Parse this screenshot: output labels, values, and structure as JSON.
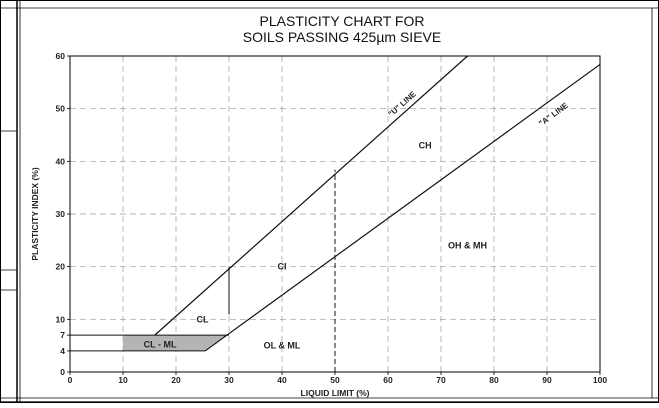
{
  "chart_data": {
    "type": "line",
    "title_lines": [
      "PLASTICITY CHART FOR",
      "SOILS PASSING 425µm SIEVE"
    ],
    "xlabel": "LIQUID LIMIT (%)",
    "ylabel": "PLASTICITY INDEX (%)",
    "xlim": [
      0,
      100
    ],
    "ylim": [
      0,
      60
    ],
    "x_ticks": [
      0,
      10,
      20,
      30,
      40,
      50,
      60,
      70,
      80,
      90,
      100
    ],
    "y_ticks": [
      0,
      4,
      7,
      10,
      20,
      30,
      40,
      50,
      60
    ],
    "grid": true,
    "grid_style": "dashed",
    "series": [
      {
        "name": "\"U\" LINE",
        "x": [
          16,
          75
        ],
        "y": [
          7,
          60
        ]
      },
      {
        "name": "\"A\" LINE",
        "x": [
          25.5,
          100
        ],
        "y": [
          4,
          58.4
        ]
      }
    ],
    "boundaries": [
      {
        "x": [
          0,
          25.5
        ],
        "y": [
          4,
          4
        ]
      },
      {
        "x": [
          0,
          30
        ],
        "y": [
          7,
          7
        ]
      },
      {
        "x": [
          30,
          30
        ],
        "y": [
          10.95,
          20
        ]
      }
    ],
    "reference_line": {
      "x": 50,
      "y_range": [
        0,
        38.4
      ],
      "style": "dashed"
    },
    "shaded_zone": {
      "label": "CL - ML",
      "polygon": [
        [
          10,
          4
        ],
        [
          25.5,
          4
        ],
        [
          29.6,
          7
        ],
        [
          10,
          7
        ]
      ],
      "color": "#b4b4b4"
    },
    "regions": [
      {
        "label": "CH",
        "x": 67,
        "y": 43
      },
      {
        "label": "CI",
        "x": 40,
        "y": 20
      },
      {
        "label": "CL",
        "x": 25,
        "y": 10
      },
      {
        "label": "OH & MH",
        "x": 75,
        "y": 24
      },
      {
        "label": "OL & ML",
        "x": 40,
        "y": 5
      },
      {
        "label": "CL - ML",
        "x": 17,
        "y": 5.2
      }
    ]
  }
}
